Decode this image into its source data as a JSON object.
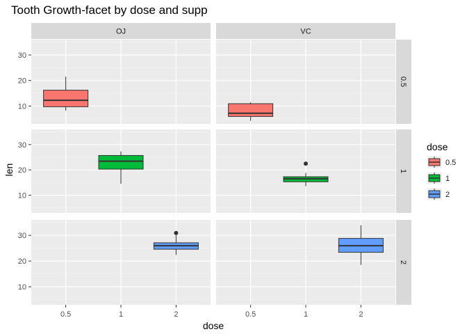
{
  "chart_data": {
    "type": "box",
    "title": "Tooth Growth-facet by dose and supp",
    "xlabel": "dose",
    "ylabel": "len",
    "x_categories": [
      "0.5",
      "1",
      "2"
    ],
    "yticks": [
      10,
      20,
      30
    ],
    "ylim": [
      3,
      36
    ],
    "col_facets": [
      "OJ",
      "VC"
    ],
    "row_facets": [
      "0.5",
      "1",
      "2"
    ],
    "legend": {
      "title": "dose",
      "position": "right",
      "entries": [
        {
          "label": "0.5",
          "color": "#F8766D"
        },
        {
          "label": "1",
          "color": "#00BA38"
        },
        {
          "label": "2",
          "color": "#619CFF"
        }
      ]
    },
    "boxes": [
      {
        "supp": "OJ",
        "dose": "0.5",
        "min": 8.2,
        "q1": 9.7,
        "median": 12.25,
        "q3": 16.2,
        "max": 21.5,
        "outliers": []
      },
      {
        "supp": "OJ",
        "dose": "1",
        "min": 14.5,
        "q1": 20.3,
        "median": 23.45,
        "q3": 25.7,
        "max": 27.3,
        "outliers": []
      },
      {
        "supp": "OJ",
        "dose": "2",
        "min": 22.4,
        "q1": 24.6,
        "median": 25.95,
        "q3": 27.1,
        "max": 30.0,
        "outliers": [
          30.9
        ]
      },
      {
        "supp": "VC",
        "dose": "0.5",
        "min": 4.2,
        "q1": 5.9,
        "median": 7.15,
        "q3": 10.9,
        "max": 11.5,
        "outliers": []
      },
      {
        "supp": "VC",
        "dose": "1",
        "min": 13.6,
        "q1": 15.3,
        "median": 16.5,
        "q3": 17.3,
        "max": 18.8,
        "outliers": [
          22.5
        ]
      },
      {
        "supp": "VC",
        "dose": "2",
        "min": 18.5,
        "q1": 23.4,
        "median": 25.95,
        "q3": 28.8,
        "max": 33.9,
        "outliers": []
      }
    ]
  }
}
